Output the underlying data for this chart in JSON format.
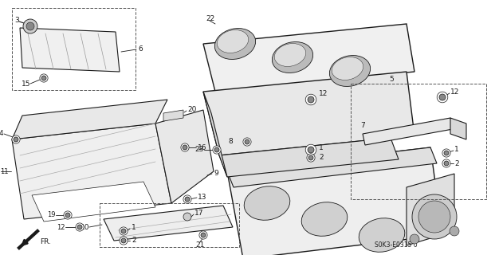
{
  "background_color": "#ffffff",
  "line_color": "#1a1a1a",
  "figsize": [
    6.21,
    3.2
  ],
  "dpi": 100,
  "diagram_ref": "S0K3-E0315 0",
  "font_size": 6.5,
  "small_font": 5.5
}
